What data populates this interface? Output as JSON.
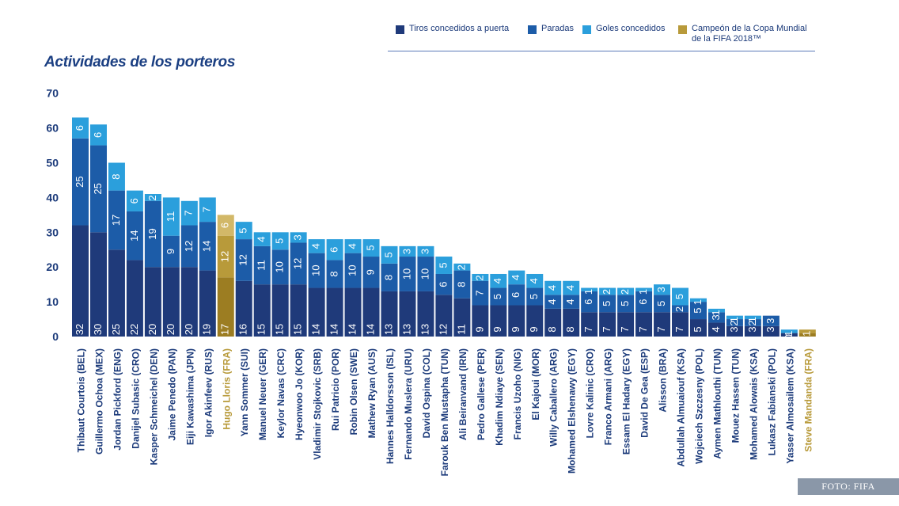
{
  "title": "Actividades de los porteros",
  "credit": "FOTO: FIFA",
  "legend": [
    {
      "label": "Tiros concedidos a puerta",
      "color": "#1f3a7a"
    },
    {
      "label": "Paradas",
      "color": "#1c5ca8"
    },
    {
      "label": "Goles concedidos",
      "color": "#2b9fdc"
    },
    {
      "label": "Campeón de la Copa Mundial\nde la FIFA 2018™",
      "color": "#b89a3a"
    }
  ],
  "chart_data": {
    "type": "bar",
    "stacked": true,
    "title": "Actividades de los porteros",
    "ylim": [
      0,
      70
    ],
    "yticks": [
      0,
      10,
      20,
      30,
      40,
      50,
      60,
      70
    ],
    "grid": false,
    "legend_position": "top-right",
    "colors": {
      "shots": "#1f3a7a",
      "saves": "#1c5ca8",
      "goals": "#2b9fdc",
      "champion_shots": "#9c7d22",
      "champion_saves": "#b89a3a",
      "champion_goals": "#d2b868",
      "champion_label": "#b89a3a",
      "label": "#1b3a7a",
      "value_text": "#ffffff"
    },
    "categories": [
      "Thibaut Courtois (BEL)",
      "Guillermo Ochoa (MEX)",
      "Jordan Pickford (ENG)",
      "Danijel Subasic (CRO)",
      "Kasper Schmeichel (DEN)",
      "Jaime Penedo (PAN)",
      "Eiji Kawashima (JPN)",
      "Igor Akinfeev (RUS)",
      "Hugo Lloris (FRA)",
      "Yann Sommer (SUI)",
      "Manuel Neuer (GER)",
      "Keylor Navas (CRC)",
      "Hyeonwoo Jo (KOR)",
      "Vladimir Stojkovic (SRB)",
      "Rui Patricio (POR)",
      "Robin Olsen (SWE)",
      "Mathew Ryan (AUS)",
      "Hannes Halldorsson (ISL)",
      "Fernando Muslera (URU)",
      "David Ospina (COL)",
      "Farouk Ben Mustapha (TUN)",
      "Ali Beiranvand (IRN)",
      "Pedro Gallese (PER)",
      "Khadim Ndiaye (SEN)",
      "Francis Uzoho (NIG)",
      "El Kajoui (MOR)",
      "Willy Caballero (ARG)",
      "Mohamed Elshenawy (EGY)",
      "Lovre Kalinic (CRO)",
      "Franco Armani (ARG)",
      "Essam El Hadary (EGY)",
      "David De Gea (ESP)",
      "Alisson (BRA)",
      "Abdullah Almuaiouf (KSA)",
      "Wojciech Szczesny (POL)",
      "Aymen Mathlouthi (TUN)",
      "Mouez Hassen (TUN)",
      "Mohamed Alowais (KSA)",
      "Lukasz Fabianski (POL)",
      "Yasser Almosailem (KSA)",
      "Steve Mandanda (FRA)"
    ],
    "champions": [
      "Hugo Lloris (FRA)",
      "Steve Mandanda (FRA)"
    ],
    "series": [
      {
        "name": "Tiros concedidos a puerta",
        "key": "shots",
        "values": [
          32,
          30,
          25,
          22,
          20,
          20,
          20,
          19,
          17,
          16,
          15,
          15,
          15,
          14,
          14,
          14,
          14,
          13,
          13,
          13,
          12,
          11,
          9,
          9,
          9,
          9,
          8,
          8,
          7,
          7,
          7,
          7,
          7,
          7,
          5,
          4,
          3,
          3,
          3,
          1,
          1
        ]
      },
      {
        "name": "Paradas",
        "key": "saves",
        "values": [
          25,
          25,
          17,
          14,
          19,
          9,
          12,
          14,
          12,
          12,
          11,
          10,
          12,
          10,
          8,
          10,
          9,
          8,
          10,
          10,
          6,
          8,
          7,
          5,
          6,
          5,
          4,
          4,
          6,
          5,
          5,
          6,
          5,
          2,
          5,
          3,
          2,
          2,
          3,
          0,
          1
        ]
      },
      {
        "name": "Goles concedidos",
        "key": "goals",
        "values": [
          6,
          6,
          8,
          6,
          2,
          11,
          7,
          7,
          6,
          5,
          4,
          5,
          3,
          4,
          6,
          4,
          5,
          5,
          3,
          3,
          5,
          2,
          2,
          4,
          4,
          4,
          4,
          4,
          1,
          2,
          2,
          1,
          3,
          5,
          1,
          1,
          1,
          1,
          0,
          1,
          0
        ]
      }
    ],
    "segment_labels": [
      [
        "32",
        "25",
        "6"
      ],
      [
        "30",
        "25",
        "6"
      ],
      [
        "25",
        "17",
        "8"
      ],
      [
        "22",
        "14",
        "6"
      ],
      [
        "20",
        "19",
        "2"
      ],
      [
        "20",
        "9",
        "11"
      ],
      [
        "20",
        "12",
        "7"
      ],
      [
        "19",
        "14",
        "7"
      ],
      [
        "17",
        "12",
        "6"
      ],
      [
        "16",
        "12",
        "5"
      ],
      [
        "15",
        "11",
        "4"
      ],
      [
        "15",
        "10",
        "5"
      ],
      [
        "15",
        "12",
        "3"
      ],
      [
        "14",
        "10",
        "4"
      ],
      [
        "14",
        "8",
        "6"
      ],
      [
        "14",
        "10",
        "4"
      ],
      [
        "14",
        "9",
        "5"
      ],
      [
        "13",
        "8",
        "5"
      ],
      [
        "13",
        "10",
        "3"
      ],
      [
        "13",
        "10",
        "3"
      ],
      [
        "12",
        "6",
        "5"
      ],
      [
        "11",
        "8",
        "2"
      ],
      [
        "9",
        "7",
        "2"
      ],
      [
        "9",
        "5",
        "4"
      ],
      [
        "9",
        "6",
        "4"
      ],
      [
        "9",
        "5",
        "4"
      ],
      [
        "8",
        "4",
        "4"
      ],
      [
        "8",
        "4",
        "4"
      ],
      [
        "7",
        "6",
        "1"
      ],
      [
        "7",
        "5",
        "2"
      ],
      [
        "7",
        "5",
        "2"
      ],
      [
        "7",
        "6",
        "1"
      ],
      [
        "7",
        "5",
        "3"
      ],
      [
        "7",
        "2",
        "5"
      ],
      [
        "5",
        "5",
        "1"
      ],
      [
        "4",
        "3",
        "1"
      ],
      [
        "3",
        "2",
        "1"
      ],
      [
        "3",
        "2",
        "1"
      ],
      [
        "3",
        "3",
        ""
      ],
      [
        "1",
        "0",
        "1"
      ],
      [
        "1",
        "1",
        ""
      ]
    ]
  }
}
